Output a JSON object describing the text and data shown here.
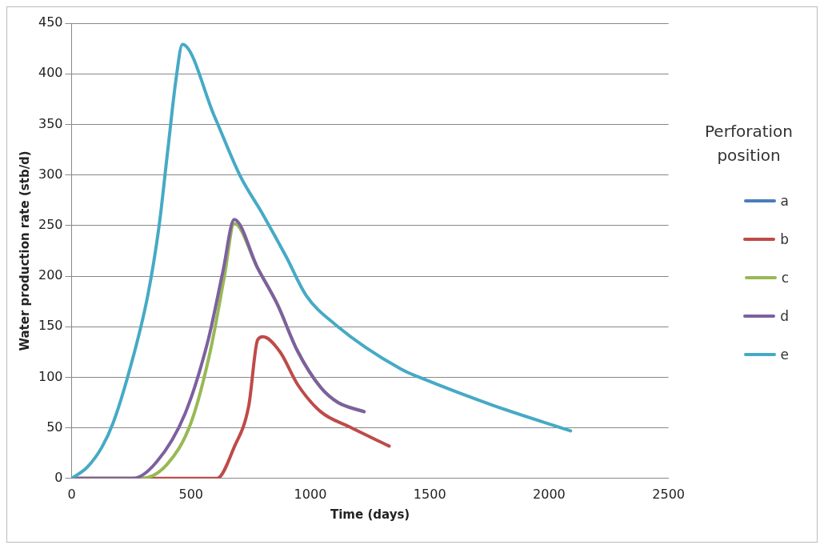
{
  "chart_data": {
    "type": "line",
    "xlabel": "Time (days)",
    "ylabel": "Water production rate (stb/d)",
    "legend_title": "Perforation position",
    "legend": "right",
    "grid": "y",
    "marker": "none",
    "line_style": "solid",
    "xlim": [
      0,
      2500
    ],
    "xticks": [
      0,
      500,
      1000,
      1500,
      2000,
      2500
    ],
    "ylim": [
      0,
      450
    ],
    "yticks": [
      0,
      50,
      100,
      150,
      200,
      250,
      300,
      350,
      400,
      450
    ],
    "series": [
      {
        "name": "a",
        "color": "#4a7ebb"
      },
      {
        "name": "b",
        "color": "#be4b48",
        "x": [
          0,
          300,
          609,
          681,
          742,
          779,
          801,
          873,
          946,
          1043,
          1163,
          1330
        ],
        "values": [
          0,
          0,
          0,
          31,
          72,
          137,
          140,
          125,
          93,
          66,
          51,
          32
        ]
      },
      {
        "name": "c",
        "color": "#98b954",
        "x": [
          0,
          290,
          400,
          500,
          580,
          640,
          681,
          779,
          862,
          946,
          1043,
          1116,
          1225
        ],
        "values": [
          0,
          0,
          14,
          55,
          125,
          200,
          252,
          208,
          172,
          126,
          90,
          75,
          66
        ]
      },
      {
        "name": "d",
        "color": "#7d60a0",
        "x": [
          0,
          257,
          355,
          475,
          572,
          634,
          681,
          779,
          862,
          946,
          1043,
          1116,
          1225
        ],
        "values": [
          0,
          0,
          16,
          64,
          137,
          205,
          256,
          208,
          172,
          126,
          90,
          75,
          66
        ]
      },
      {
        "name": "e",
        "color": "#46aac5",
        "x": [
          0,
          65,
          127,
          174,
          246,
          319,
          366,
          402,
          438,
          464,
          598,
          706,
          801,
          899,
          982,
          1105,
          1380,
          1467,
          1768,
          2090
        ],
        "values": [
          0,
          11,
          31,
          55,
          110,
          181,
          249,
          323,
          396,
          429,
          358,
          299,
          261,
          219,
          181,
          152,
          108,
          99,
          72,
          47
        ]
      }
    ]
  }
}
